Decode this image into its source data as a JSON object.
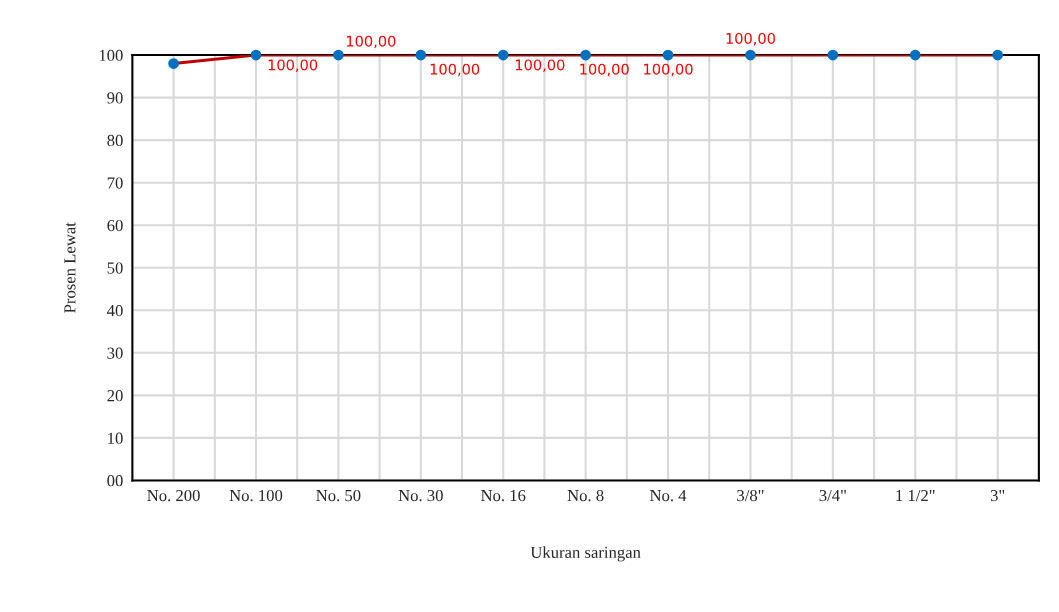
{
  "chart_data": {
    "type": "line",
    "xlabel": "Ukuran saringan",
    "ylabel": "Prosen Lewat",
    "categories": [
      "No. 200",
      "No. 100",
      "No. 50",
      "No. 30",
      "No. 16",
      "No. 8",
      "No. 4",
      "3/8\"",
      "3/4\"",
      "1 1/2\"",
      "3\""
    ],
    "series": [
      {
        "color": "#c00000",
        "values": [
          98,
          100,
          100,
          100,
          100,
          100,
          100,
          100,
          100,
          100,
          100
        ],
        "value_labels": [
          null,
          "100,00",
          "100,00",
          "100,00",
          "100,00",
          "100,00",
          "100,00",
          "100,00",
          null,
          null,
          null
        ]
      }
    ],
    "marker": "circle",
    "ylim": [
      0,
      100
    ],
    "yticks": [
      {
        "value": 0,
        "label": "00"
      },
      10,
      20,
      30,
      40,
      50,
      60,
      70,
      80,
      90,
      100
    ],
    "grid": true
  }
}
